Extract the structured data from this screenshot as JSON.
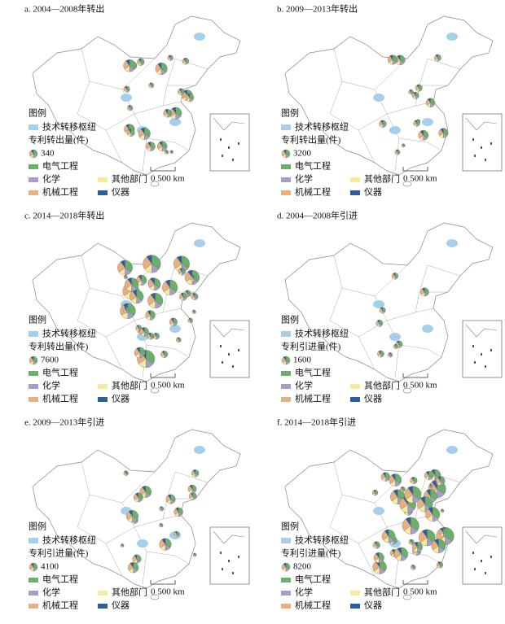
{
  "panels": [
    {
      "title": "a. 2004—2008年转出",
      "legend": {
        "heading": "图例",
        "hub": "技术转移枢纽",
        "size_label": "专利转出量(件)",
        "size_value": 340,
        "categories": [
          "电气工程",
          "化学",
          "其他部门",
          "机械工程",
          "仪器"
        ]
      },
      "scale": "0 500 km"
    },
    {
      "title": "b. 2009—2013年转出",
      "legend": {
        "heading": "图例",
        "hub": "技术转移枢纽",
        "size_label": "专利转出量(件)",
        "size_value": 3200,
        "categories": [
          "电气工程",
          "化学",
          "其他部门",
          "机械工程",
          "仪器"
        ]
      },
      "scale": "0 500 km"
    },
    {
      "title": "c. 2014—2018年转出",
      "legend": {
        "heading": "图例",
        "hub": "技术转移枢纽",
        "size_label": "专利转出量(件)",
        "size_value": 7600,
        "categories": [
          "电气工程",
          "化学",
          "其他部门",
          "机械工程",
          "仪器"
        ]
      },
      "scale": "0 500 km"
    },
    {
      "title": "d. 2004—2008年引进",
      "legend": {
        "heading": "图例",
        "hub": "技术转移枢纽",
        "size_label": "专利引进量(件)",
        "size_value": 1600,
        "categories": [
          "电气工程",
          "化学",
          "其他部门",
          "机械工程",
          "仪器"
        ]
      },
      "scale": "0 500 km"
    },
    {
      "title": "e. 2009—2013年引进",
      "legend": {
        "heading": "图例",
        "hub": "技术转移枢纽",
        "size_label": "专利引进量(件)",
        "size_value": 4100,
        "categories": [
          "电气工程",
          "化学",
          "其他部门",
          "机械工程",
          "仪器"
        ]
      },
      "scale": "0 500 km"
    },
    {
      "title": "f. 2014—2018年引进",
      "legend": {
        "heading": "图例",
        "hub": "技术转移枢纽",
        "size_label": "专利引进量(件)",
        "size_value": 8200,
        "categories": [
          "电气工程",
          "化学",
          "其他部门",
          "机械工程",
          "仪器"
        ]
      },
      "scale": "0 500 km"
    }
  ]
}
